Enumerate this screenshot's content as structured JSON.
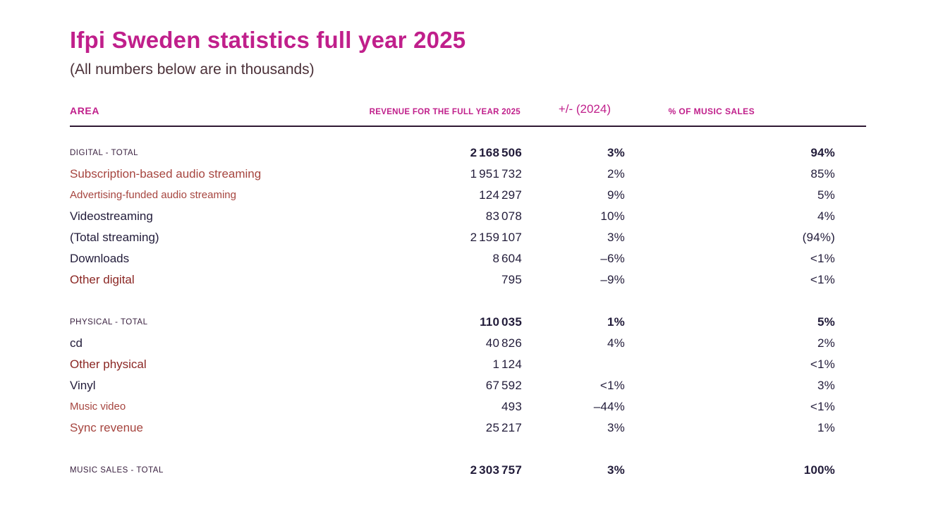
{
  "page": {
    "title": "Ifpi Sweden statistics full year 2025",
    "subtitle": "(All numbers below are in thousands)"
  },
  "theme": {
    "accent_magenta": "#C01F8B",
    "dark_text": "#221C3A",
    "brick_red": "#A6453F",
    "maroon": "#8B2724",
    "caps_label": "#3A2140",
    "subtitle_text": "#4B3038",
    "rule_line": "#2F1833",
    "background": "#FFFFFF"
  },
  "table": {
    "header": {
      "area": "AREA",
      "revenue": "REVENUE FOR THE FULL YEAR 2025",
      "change": "+/- (2024)",
      "share": "% OF MUSIC SALES"
    },
    "rows": [
      {
        "label": "DIGITAL - TOTAL",
        "revenue": "2 168 506",
        "change": "3%",
        "share": "94%",
        "style": "caps",
        "bold": true,
        "gap_before": false
      },
      {
        "label": "Subscription-based audio streaming",
        "revenue": "1 951 732",
        "change": "2%",
        "share": "85%",
        "style": "red",
        "bold": false,
        "gap_before": false
      },
      {
        "label": "Advertising-funded audio streaming",
        "revenue": "124 297",
        "change": "9%",
        "share": "5%",
        "style": "red-small",
        "bold": false,
        "gap_before": false
      },
      {
        "label": "Videostreaming",
        "revenue": "83 078",
        "change": "10%",
        "share": "4%",
        "style": "dark",
        "bold": false,
        "gap_before": false
      },
      {
        "label": "(Total streaming)",
        "revenue": "2 159 107",
        "change": "3%",
        "share": "(94%)",
        "style": "dark",
        "bold": false,
        "gap_before": false
      },
      {
        "label": "Downloads",
        "revenue": "8 604",
        "change": "–6%",
        "share": "<1%",
        "style": "dark",
        "bold": false,
        "gap_before": false
      },
      {
        "label": "Other digital",
        "revenue": "795",
        "change": "–9%",
        "share": "<1%",
        "style": "maroon",
        "bold": false,
        "gap_before": false
      },
      {
        "label": "PHYSICAL - TOTAL",
        "revenue": "110 035",
        "change": "1%",
        "share": "5%",
        "style": "caps",
        "bold": true,
        "gap_before": true
      },
      {
        "label": "cd",
        "revenue": "40 826",
        "change": "4%",
        "share": "2%",
        "style": "dark",
        "bold": false,
        "gap_before": false
      },
      {
        "label": "Other physical",
        "revenue": "1 124",
        "change": "",
        "share": "<1%",
        "style": "maroon",
        "bold": false,
        "gap_before": false
      },
      {
        "label": "Vinyl",
        "revenue": "67 592",
        "change": "<1%",
        "share": "3%",
        "style": "dark",
        "bold": false,
        "gap_before": false
      },
      {
        "label": "Music video",
        "revenue": "493",
        "change": "–44%",
        "share": "<1%",
        "style": "red-small",
        "bold": false,
        "gap_before": false
      },
      {
        "label": "Sync revenue",
        "revenue": "25 217",
        "change": "3%",
        "share": "1%",
        "style": "red",
        "bold": false,
        "gap_before": false
      },
      {
        "label": "MUSIC SALES - TOTAL",
        "revenue": "2 303 757",
        "change": "3%",
        "share": "100%",
        "style": "caps",
        "bold": true,
        "gap_before": true
      }
    ]
  },
  "chart_data": {
    "type": "table",
    "title": "Ifpi Sweden statistics full year 2025",
    "subtitle": "(All numbers below are in thousands)",
    "columns": [
      "AREA",
      "REVENUE FOR THE FULL YEAR 2025",
      "+/- (2024)",
      "% OF MUSIC SALES"
    ],
    "rows": [
      [
        "DIGITAL - TOTAL",
        2168506,
        "3%",
        "94%"
      ],
      [
        "Subscription-based audio streaming",
        1951732,
        "2%",
        "85%"
      ],
      [
        "Advertising-funded audio streaming",
        124297,
        "9%",
        "5%"
      ],
      [
        "Videostreaming",
        83078,
        "10%",
        "4%"
      ],
      [
        "(Total streaming)",
        2159107,
        "3%",
        "(94%)"
      ],
      [
        "Downloads",
        8604,
        "-6%",
        "<1%"
      ],
      [
        "Other digital",
        795,
        "-9%",
        "<1%"
      ],
      [
        "PHYSICAL - TOTAL",
        110035,
        "1%",
        "5%"
      ],
      [
        "cd",
        40826,
        "4%",
        "2%"
      ],
      [
        "Other physical",
        1124,
        "",
        "<1%"
      ],
      [
        "Vinyl",
        67592,
        "<1%",
        "3%"
      ],
      [
        "Music video",
        493,
        "-44%",
        "<1%"
      ],
      [
        "Sync revenue",
        25217,
        "3%",
        "1%"
      ],
      [
        "MUSIC SALES - TOTAL",
        2303757,
        "3%",
        "100%"
      ]
    ],
    "notes": "All revenue values are in thousands; totals rows are bold in source"
  }
}
